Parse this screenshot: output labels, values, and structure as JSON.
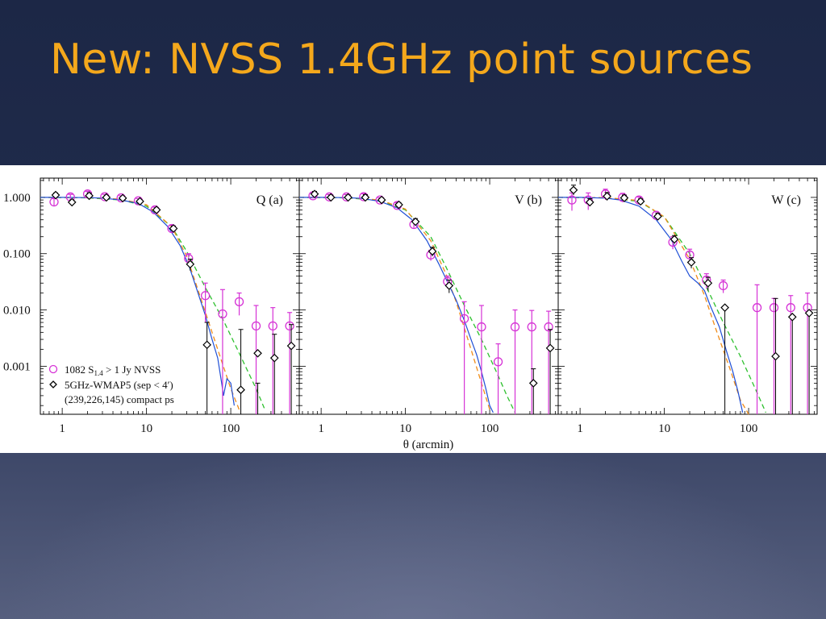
{
  "slide": {
    "title": "New: NVSS 1.4GHz point sources",
    "colors": {
      "title": "#f4a81c",
      "background": "#1f2a4a"
    }
  },
  "chart_data": {
    "type": "scatter",
    "xlabel": "θ (arcmin)",
    "xscale": "log",
    "yscale": "log",
    "xlim": [
      0.55,
      650
    ],
    "ylim": [
      0.00014,
      2.2
    ],
    "x_ticklabels": [
      "1",
      "10",
      "100"
    ],
    "y_ticklabels": [
      "1.000",
      "0.100",
      "0.010",
      "0.001"
    ],
    "legend": {
      "placement": "bottom-left of panel Q (a)",
      "line1_pre": "1082 S",
      "line1_sub": "1.4",
      "line1_post": " > 1 Jy NVSS",
      "line2": "5GHz-WMAP5 (sep < 4′)",
      "line3": "(239,226,145) compact ps"
    },
    "colors": {
      "nvss": "#d633d6",
      "wmap": "#000000",
      "beam": "#1f4fd6",
      "fit_orange": "#f08c1a",
      "fit_green": "#2ec02e"
    },
    "panels": [
      {
        "label": "Q (a)",
        "nvss": [
          {
            "x": 0.8,
            "y": 0.83,
            "lo": 0.7,
            "hi": 0.95
          },
          {
            "x": 1.25,
            "y": 1.02,
            "lo": 0.9,
            "hi": 1.13
          },
          {
            "x": 2.0,
            "y": 1.15,
            "lo": 1.02,
            "hi": 1.28
          },
          {
            "x": 3.2,
            "y": 1.03,
            "lo": 0.93,
            "hi": 1.13
          },
          {
            "x": 5.0,
            "y": 0.98,
            "lo": 0.9,
            "hi": 1.07
          },
          {
            "x": 8.0,
            "y": 0.87,
            "lo": 0.8,
            "hi": 0.95
          },
          {
            "x": 12.6,
            "y": 0.6,
            "lo": 0.54,
            "hi": 0.67
          },
          {
            "x": 20,
            "y": 0.28,
            "lo": 0.24,
            "hi": 0.32
          },
          {
            "x": 31.6,
            "y": 0.082,
            "lo": 0.06,
            "hi": 0.1
          },
          {
            "x": 50,
            "y": 0.018,
            "lo": 0.006,
            "hi": 0.03
          },
          {
            "x": 80,
            "y": 0.0085,
            "lo": 0.00014,
            "hi": 0.023
          },
          {
            "x": 126,
            "y": 0.014,
            "lo": 0.008,
            "hi": 0.02
          },
          {
            "x": 200,
            "y": 0.0052,
            "lo": 0.00014,
            "hi": 0.012
          },
          {
            "x": 316,
            "y": 0.0052,
            "lo": 0.00014,
            "hi": 0.011
          },
          {
            "x": 500,
            "y": 0.0052,
            "lo": 0.00014,
            "hi": 0.009
          }
        ],
        "wmap": [
          {
            "x": 0.8,
            "y": 1.1,
            "lo": 0.99,
            "hi": 1.2
          },
          {
            "x": 1.25,
            "y": 0.82,
            "lo": 0.74,
            "hi": 0.9
          },
          {
            "x": 2.0,
            "y": 1.07,
            "lo": 0.95,
            "hi": 1.2
          },
          {
            "x": 3.2,
            "y": 1.0,
            "lo": 0.92,
            "hi": 1.08
          },
          {
            "x": 5.0,
            "y": 0.97,
            "lo": 0.91,
            "hi": 1.04
          },
          {
            "x": 8.0,
            "y": 0.85,
            "lo": 0.79,
            "hi": 0.91
          },
          {
            "x": 12.6,
            "y": 0.6,
            "lo": 0.55,
            "hi": 0.65
          },
          {
            "x": 20,
            "y": 0.28,
            "lo": 0.25,
            "hi": 0.31
          },
          {
            "x": 31.6,
            "y": 0.065,
            "lo": 0.05,
            "hi": 0.08
          },
          {
            "x": 50,
            "y": 0.0024,
            "lo": 0.00014,
            "hi": 0.006
          },
          {
            "x": 126,
            "y": 0.00038,
            "lo": 0.00014,
            "hi": 0.0045
          },
          {
            "x": 200,
            "y": 0.0017,
            "lo": 0.00014,
            "hi": 0.0005
          },
          {
            "x": 316,
            "y": 0.0014,
            "lo": 0.00014,
            "hi": 0.0037
          },
          {
            "x": 500,
            "y": 0.0023,
            "lo": 0.00014,
            "hi": 0.0055
          }
        ],
        "beam": [
          [
            0.55,
            1.0
          ],
          [
            1,
            1.0
          ],
          [
            2,
            0.99
          ],
          [
            3,
            0.97
          ],
          [
            5,
            0.9
          ],
          [
            8,
            0.78
          ],
          [
            12,
            0.55
          ],
          [
            18,
            0.3
          ],
          [
            25,
            0.14
          ],
          [
            32,
            0.06
          ],
          [
            40,
            0.022
          ],
          [
            50,
            0.008
          ],
          [
            60,
            0.003
          ],
          [
            70,
            0.0014
          ],
          [
            78,
            0.0005
          ],
          [
            82,
            0.0003
          ],
          [
            90,
            0.0006
          ],
          [
            100,
            0.0005
          ],
          [
            110,
            0.0002
          ]
        ],
        "fit_orange": [
          [
            0.55,
            1.0
          ],
          [
            2,
            0.99
          ],
          [
            5,
            0.93
          ],
          [
            10,
            0.74
          ],
          [
            20,
            0.3
          ],
          [
            30,
            0.09
          ],
          [
            40,
            0.025
          ],
          [
            60,
            0.004
          ],
          [
            80,
            0.0011
          ],
          [
            100,
            0.0004
          ],
          [
            130,
            0.00015
          ]
        ],
        "fit_green": [
          [
            0.55,
            1.0
          ],
          [
            2,
            0.98
          ],
          [
            5,
            0.9
          ],
          [
            10,
            0.7
          ],
          [
            20,
            0.3
          ],
          [
            30,
            0.11
          ],
          [
            50,
            0.025
          ],
          [
            80,
            0.007
          ],
          [
            120,
            0.002
          ],
          [
            160,
            0.0008
          ],
          [
            200,
            0.0004
          ],
          [
            250,
            0.00018
          ]
        ]
      },
      {
        "label": "V (b)",
        "nvss": [
          {
            "x": 0.8,
            "y": 1.07,
            "lo": 0.95,
            "hi": 1.2
          },
          {
            "x": 1.25,
            "y": 1.02,
            "lo": 0.92,
            "hi": 1.12
          },
          {
            "x": 2.0,
            "y": 1.02,
            "lo": 0.93,
            "hi": 1.12
          },
          {
            "x": 3.2,
            "y": 1.03,
            "lo": 0.9,
            "hi": 1.16
          },
          {
            "x": 5.0,
            "y": 0.9,
            "lo": 0.82,
            "hi": 0.98
          },
          {
            "x": 8.0,
            "y": 0.72,
            "lo": 0.65,
            "hi": 0.8
          },
          {
            "x": 12.6,
            "y": 0.33,
            "lo": 0.28,
            "hi": 0.38
          },
          {
            "x": 20,
            "y": 0.095,
            "lo": 0.075,
            "hi": 0.115
          },
          {
            "x": 31.6,
            "y": 0.032,
            "lo": 0.024,
            "hi": 0.04
          },
          {
            "x": 50,
            "y": 0.007,
            "lo": 0.00014,
            "hi": 0.014
          },
          {
            "x": 80,
            "y": 0.005,
            "lo": 0.00014,
            "hi": 0.012
          },
          {
            "x": 126,
            "y": 0.0012,
            "lo": 0.00014,
            "hi": 0.0025
          },
          {
            "x": 200,
            "y": 0.005,
            "lo": 0.00014,
            "hi": 0.01
          },
          {
            "x": 316,
            "y": 0.005,
            "lo": 0.00014,
            "hi": 0.0098
          },
          {
            "x": 500,
            "y": 0.005,
            "lo": 0.00014,
            "hi": 0.0095
          }
        ],
        "wmap": [
          {
            "x": 0.8,
            "y": 1.15,
            "lo": 1.02,
            "hi": 1.28
          },
          {
            "x": 1.25,
            "y": 1.0,
            "lo": 0.9,
            "hi": 1.1
          },
          {
            "x": 2.0,
            "y": 1.0,
            "lo": 0.9,
            "hi": 1.1
          },
          {
            "x": 3.2,
            "y": 1.0,
            "lo": 0.88,
            "hi": 1.12
          },
          {
            "x": 5.0,
            "y": 0.9,
            "lo": 0.82,
            "hi": 0.98
          },
          {
            "x": 8.0,
            "y": 0.74,
            "lo": 0.67,
            "hi": 0.81
          },
          {
            "x": 12.6,
            "y": 0.37,
            "lo": 0.32,
            "hi": 0.42
          },
          {
            "x": 20,
            "y": 0.11,
            "lo": 0.09,
            "hi": 0.13
          },
          {
            "x": 31.6,
            "y": 0.027,
            "lo": 0.02,
            "hi": 0.034
          },
          {
            "x": 316,
            "y": 0.0005,
            "lo": 0.00014,
            "hi": 0.0009
          },
          {
            "x": 500,
            "y": 0.0021,
            "lo": 0.00014,
            "hi": 0.0045
          }
        ],
        "beam": [
          [
            0.55,
            1.0
          ],
          [
            1,
            1.0
          ],
          [
            2,
            0.99
          ],
          [
            3,
            0.96
          ],
          [
            5,
            0.85
          ],
          [
            8,
            0.65
          ],
          [
            12,
            0.4
          ],
          [
            18,
            0.17
          ],
          [
            25,
            0.065
          ],
          [
            32,
            0.03
          ],
          [
            40,
            0.015
          ],
          [
            50,
            0.0065
          ],
          [
            60,
            0.003
          ],
          [
            70,
            0.0016
          ],
          [
            80,
            0.0008
          ],
          [
            90,
            0.0004
          ],
          [
            100,
            0.0002
          ],
          [
            110,
            0.00015
          ]
        ],
        "fit_orange": [
          [
            0.55,
            1.0
          ],
          [
            2,
            0.99
          ],
          [
            5,
            0.9
          ],
          [
            10,
            0.62
          ],
          [
            20,
            0.17
          ],
          [
            30,
            0.045
          ],
          [
            40,
            0.014
          ],
          [
            60,
            0.002
          ],
          [
            80,
            0.0005
          ],
          [
            100,
            0.00017
          ]
        ],
        "fit_green": [
          [
            0.55,
            1.0
          ],
          [
            2,
            0.98
          ],
          [
            5,
            0.88
          ],
          [
            10,
            0.6
          ],
          [
            20,
            0.2
          ],
          [
            30,
            0.06
          ],
          [
            50,
            0.012
          ],
          [
            80,
            0.003
          ],
          [
            120,
            0.0008
          ],
          [
            160,
            0.0003
          ],
          [
            200,
            0.00015
          ]
        ]
      },
      {
        "label": "W (c)",
        "nvss": [
          {
            "x": 0.8,
            "y": 0.9,
            "lo": 0.58,
            "hi": 1.2
          },
          {
            "x": 1.25,
            "y": 0.9,
            "lo": 0.6,
            "hi": 1.2
          },
          {
            "x": 2.0,
            "y": 1.15,
            "lo": 0.9,
            "hi": 1.4
          },
          {
            "x": 3.2,
            "y": 1.0,
            "lo": 0.82,
            "hi": 1.18
          },
          {
            "x": 5.0,
            "y": 0.9,
            "lo": 0.78,
            "hi": 1.02
          },
          {
            "x": 8.0,
            "y": 0.48,
            "lo": 0.4,
            "hi": 0.56
          },
          {
            "x": 12.6,
            "y": 0.16,
            "lo": 0.12,
            "hi": 0.2
          },
          {
            "x": 20,
            "y": 0.095,
            "lo": 0.07,
            "hi": 0.12
          },
          {
            "x": 31.6,
            "y": 0.034,
            "lo": 0.024,
            "hi": 0.044
          },
          {
            "x": 50,
            "y": 0.027,
            "lo": 0.02,
            "hi": 0.034
          },
          {
            "x": 126,
            "y": 0.011,
            "lo": 0.00014,
            "hi": 0.028
          },
          {
            "x": 200,
            "y": 0.011,
            "lo": 0.00014,
            "hi": 0.016
          },
          {
            "x": 316,
            "y": 0.011,
            "lo": 0.00014,
            "hi": 0.018
          },
          {
            "x": 500,
            "y": 0.011,
            "lo": 0.00014,
            "hi": 0.02
          }
        ],
        "wmap": [
          {
            "x": 0.8,
            "y": 1.35,
            "lo": 1.1,
            "hi": 1.65
          },
          {
            "x": 1.25,
            "y": 0.82,
            "lo": 0.7,
            "hi": 0.95
          },
          {
            "x": 2.0,
            "y": 1.05,
            "lo": 0.88,
            "hi": 1.22
          },
          {
            "x": 3.2,
            "y": 0.98,
            "lo": 0.85,
            "hi": 1.1
          },
          {
            "x": 5.0,
            "y": 0.85,
            "lo": 0.76,
            "hi": 0.94
          },
          {
            "x": 8.0,
            "y": 0.46,
            "lo": 0.4,
            "hi": 0.52
          },
          {
            "x": 12.6,
            "y": 0.18,
            "lo": 0.15,
            "hi": 0.21
          },
          {
            "x": 20,
            "y": 0.07,
            "lo": 0.055,
            "hi": 0.085
          },
          {
            "x": 31.6,
            "y": 0.03,
            "lo": 0.022,
            "hi": 0.038
          },
          {
            "x": 50,
            "y": 0.011,
            "lo": 0.00014,
            "hi": 0.011
          },
          {
            "x": 200,
            "y": 0.0015,
            "lo": 0.00014,
            "hi": 0.016
          },
          {
            "x": 316,
            "y": 0.0075,
            "lo": 0.00014,
            "hi": 0.0075
          },
          {
            "x": 500,
            "y": 0.0088,
            "lo": 0.00014,
            "hi": 0.0088
          }
        ],
        "beam": [
          [
            0.55,
            1.0
          ],
          [
            1,
            1.0
          ],
          [
            2,
            0.97
          ],
          [
            3,
            0.9
          ],
          [
            5,
            0.7
          ],
          [
            8,
            0.4
          ],
          [
            12,
            0.18
          ],
          [
            16,
            0.075
          ],
          [
            20,
            0.04
          ],
          [
            25,
            0.03
          ],
          [
            30,
            0.022
          ],
          [
            35,
            0.012
          ],
          [
            45,
            0.005
          ],
          [
            55,
            0.0018
          ],
          [
            65,
            0.0008
          ],
          [
            75,
            0.00035
          ],
          [
            85,
            0.00015
          ]
        ],
        "fit_orange": [
          [
            0.55,
            1.0
          ],
          [
            2,
            0.99
          ],
          [
            5,
            0.88
          ],
          [
            10,
            0.45
          ],
          [
            20,
            0.08
          ],
          [
            30,
            0.018
          ],
          [
            40,
            0.005
          ],
          [
            60,
            0.0009
          ],
          [
            80,
            0.00025
          ],
          [
            100,
            0.00012
          ]
        ],
        "fit_green": [
          [
            0.55,
            1.0
          ],
          [
            2,
            0.98
          ],
          [
            5,
            0.85
          ],
          [
            10,
            0.45
          ],
          [
            20,
            0.1
          ],
          [
            30,
            0.03
          ],
          [
            50,
            0.006
          ],
          [
            80,
            0.0015
          ],
          [
            120,
            0.0004
          ],
          [
            160,
            0.00015
          ]
        ]
      }
    ]
  }
}
